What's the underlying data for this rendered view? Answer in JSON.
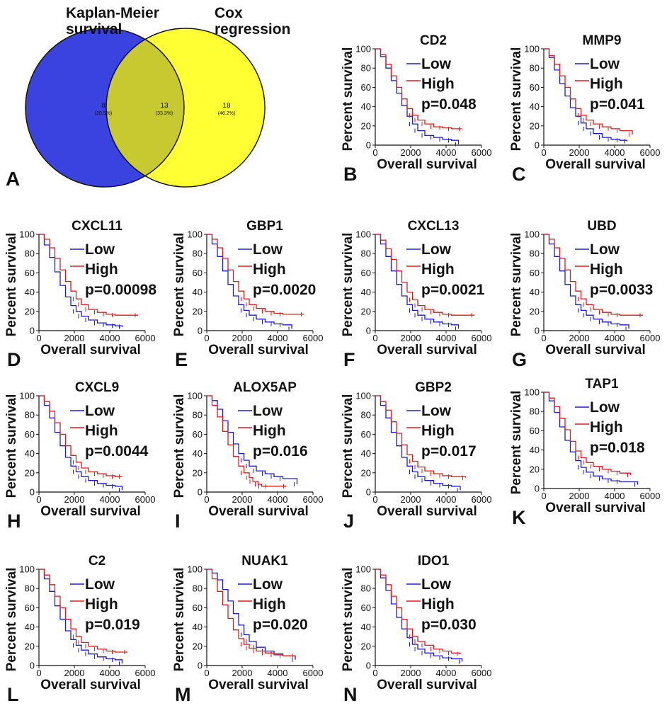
{
  "venn": {
    "panel_letter": "A",
    "left_label": [
      "Kaplan-Meier",
      "survival"
    ],
    "right_label": [
      "Cox",
      "regression"
    ],
    "left_only": {
      "count": "8",
      "pct": "(20.5%)"
    },
    "overlap": {
      "count": "13",
      "pct": "(33.3%)"
    },
    "right_only": {
      "count": "18",
      "pct": "(46.2%)"
    },
    "colors": {
      "left": "#3a43e0",
      "right": "#ffff33",
      "overlap": "#c8c830"
    }
  },
  "axis_text": {
    "ylabel": "Percent survival",
    "xlabel": "Overall survival",
    "legend_low": "Low",
    "legend_high": "High"
  },
  "colors": {
    "low": "#1c1cd6",
    "high": "#e01c1c"
  },
  "x_ticks": [
    0,
    2000,
    4000,
    6000
  ],
  "y_ticks": [
    0,
    20,
    40,
    60,
    80,
    100
  ],
  "chart_data": [
    {
      "type": "line",
      "panel": "B",
      "title": "CD2",
      "pvalue": "p=0.048",
      "xlim": [
        0,
        6000
      ],
      "ylim": [
        0,
        100
      ],
      "series": [
        {
          "name": "Low",
          "x": [
            0,
            300,
            600,
            900,
            1200,
            1500,
            1800,
            2100,
            2400,
            2800,
            3300,
            3800,
            4300,
            4700
          ],
          "y": [
            100,
            92,
            80,
            67,
            54,
            41,
            30,
            22,
            15,
            10,
            8,
            6,
            5,
            1
          ]
        },
        {
          "name": "High",
          "x": [
            0,
            300,
            600,
            900,
            1200,
            1500,
            1800,
            2100,
            2400,
            2800,
            3300,
            3800,
            4300,
            4900
          ],
          "y": [
            100,
            94,
            84,
            72,
            60,
            48,
            38,
            31,
            26,
            22,
            19,
            18,
            17,
            17
          ]
        }
      ]
    },
    {
      "type": "line",
      "panel": "C",
      "title": "MMP9",
      "pvalue": "p=0.041",
      "xlim": [
        0,
        6000
      ],
      "ylim": [
        0,
        100
      ],
      "series": [
        {
          "name": "Low",
          "x": [
            0,
            300,
            600,
            900,
            1200,
            1500,
            1800,
            2100,
            2400,
            2800,
            3300,
            3800,
            4300,
            4700
          ],
          "y": [
            100,
            91,
            78,
            64,
            51,
            39,
            30,
            23,
            17,
            12,
            8,
            6,
            5,
            4
          ]
        },
        {
          "name": "High",
          "x": [
            0,
            300,
            600,
            900,
            1200,
            1500,
            1800,
            2100,
            2400,
            2800,
            3300,
            3800,
            4300,
            5000
          ],
          "y": [
            100,
            93,
            84,
            72,
            60,
            48,
            38,
            31,
            26,
            22,
            19,
            17,
            15,
            11
          ]
        }
      ]
    },
    {
      "type": "line",
      "panel": "D",
      "title": "CXCL11",
      "pvalue": "p=0.00098",
      "xlim": [
        0,
        6000
      ],
      "ylim": [
        0,
        100
      ],
      "series": [
        {
          "name": "Low",
          "x": [
            0,
            300,
            600,
            900,
            1200,
            1500,
            1800,
            2100,
            2400,
            2800,
            3300,
            3800,
            4300,
            4700
          ],
          "y": [
            100,
            89,
            76,
            61,
            47,
            35,
            26,
            20,
            15,
            11,
            8,
            6,
            5,
            4
          ]
        },
        {
          "name": "High",
          "x": [
            0,
            300,
            600,
            900,
            1200,
            1500,
            1800,
            2100,
            2400,
            2800,
            3300,
            3800,
            4300,
            5600
          ],
          "y": [
            100,
            95,
            86,
            75,
            63,
            51,
            41,
            33,
            27,
            22,
            19,
            17,
            16,
            16
          ]
        }
      ]
    },
    {
      "type": "line",
      "panel": "E",
      "title": "GBP1",
      "pvalue": "p=0.0020",
      "xlim": [
        0,
        6000
      ],
      "ylim": [
        0,
        100
      ],
      "series": [
        {
          "name": "Low",
          "x": [
            0,
            300,
            600,
            900,
            1200,
            1500,
            1800,
            2100,
            2400,
            2800,
            3300,
            3800,
            4300,
            4800
          ],
          "y": [
            100,
            90,
            77,
            62,
            48,
            36,
            27,
            21,
            16,
            12,
            9,
            7,
            6,
            2
          ]
        },
        {
          "name": "High",
          "x": [
            0,
            300,
            600,
            900,
            1200,
            1500,
            1800,
            2100,
            2400,
            2800,
            3300,
            3800,
            4300,
            5500
          ],
          "y": [
            100,
            95,
            86,
            75,
            63,
            51,
            41,
            33,
            27,
            23,
            20,
            18,
            17,
            17
          ]
        }
      ]
    },
    {
      "type": "line",
      "panel": "F",
      "title": "CXCL13",
      "pvalue": "p=0.0021",
      "xlim": [
        0,
        6000
      ],
      "ylim": [
        0,
        100
      ],
      "series": [
        {
          "name": "Low",
          "x": [
            0,
            300,
            600,
            900,
            1200,
            1500,
            1800,
            2100,
            2400,
            2800,
            3300,
            3800,
            4300,
            4700
          ],
          "y": [
            100,
            90,
            77,
            62,
            48,
            36,
            27,
            21,
            16,
            12,
            9,
            7,
            6,
            2
          ]
        },
        {
          "name": "High",
          "x": [
            0,
            300,
            600,
            900,
            1200,
            1500,
            1800,
            2100,
            2400,
            2800,
            3300,
            3800,
            4300,
            5600
          ],
          "y": [
            100,
            94,
            85,
            74,
            62,
            50,
            40,
            32,
            26,
            22,
            19,
            17,
            16,
            16
          ]
        }
      ]
    },
    {
      "type": "line",
      "panel": "G",
      "title": "UBD",
      "pvalue": "p=0.0033",
      "xlim": [
        0,
        6000
      ],
      "ylim": [
        0,
        100
      ],
      "series": [
        {
          "name": "Low",
          "x": [
            0,
            300,
            600,
            900,
            1200,
            1500,
            1800,
            2100,
            2400,
            2800,
            3300,
            3800,
            4300,
            4800
          ],
          "y": [
            100,
            90,
            77,
            62,
            48,
            36,
            27,
            21,
            16,
            12,
            9,
            7,
            6,
            2
          ]
        },
        {
          "name": "High",
          "x": [
            0,
            300,
            600,
            900,
            1200,
            1500,
            1800,
            2100,
            2400,
            2800,
            3300,
            3800,
            4300,
            5600
          ],
          "y": [
            100,
            95,
            86,
            75,
            63,
            51,
            41,
            33,
            27,
            22,
            19,
            17,
            16,
            16
          ]
        }
      ]
    },
    {
      "type": "line",
      "panel": "H",
      "title": "CXCL9",
      "pvalue": "p=0.0044",
      "xlim": [
        0,
        6000
      ],
      "ylim": [
        0,
        100
      ],
      "series": [
        {
          "name": "Low",
          "x": [
            0,
            300,
            600,
            900,
            1200,
            1500,
            1800,
            2100,
            2400,
            2800,
            3300,
            3800,
            4300,
            4700
          ],
          "y": [
            100,
            90,
            77,
            62,
            48,
            36,
            27,
            21,
            16,
            12,
            9,
            7,
            6,
            2
          ]
        },
        {
          "name": "High",
          "x": [
            0,
            300,
            600,
            900,
            1200,
            1500,
            1800,
            2100,
            2400,
            2800,
            3300,
            3800,
            4300,
            4700
          ],
          "y": [
            100,
            94,
            84,
            72,
            60,
            48,
            38,
            31,
            25,
            21,
            19,
            17,
            16,
            16
          ]
        }
      ]
    },
    {
      "type": "line",
      "panel": "I",
      "title": "ALOX5AP",
      "pvalue": "p=0.016",
      "xlim": [
        0,
        6000
      ],
      "ylim": [
        0,
        100
      ],
      "series": [
        {
          "name": "Low",
          "x": [
            0,
            300,
            600,
            900,
            1200,
            1500,
            1800,
            2100,
            2400,
            2800,
            3300,
            3800,
            4300,
            5100
          ],
          "y": [
            100,
            95,
            86,
            74,
            62,
            50,
            40,
            33,
            27,
            22,
            19,
            16,
            14,
            8
          ]
        },
        {
          "name": "High",
          "x": [
            0,
            300,
            600,
            900,
            1200,
            1500,
            1800,
            2100,
            2400,
            2600,
            2900,
            3100,
            3500,
            4500
          ],
          "y": [
            100,
            90,
            78,
            63,
            49,
            37,
            27,
            20,
            15,
            11,
            8,
            6,
            6,
            6
          ]
        }
      ]
    },
    {
      "type": "line",
      "panel": "J",
      "title": "GBP2",
      "pvalue": "p=0.017",
      "xlim": [
        0,
        6000
      ],
      "ylim": [
        0,
        100
      ],
      "series": [
        {
          "name": "Low",
          "x": [
            0,
            300,
            600,
            900,
            1200,
            1500,
            1800,
            2100,
            2400,
            2800,
            3300,
            3800,
            4300,
            4800
          ],
          "y": [
            100,
            90,
            77,
            62,
            48,
            36,
            27,
            21,
            16,
            12,
            9,
            7,
            6,
            2
          ]
        },
        {
          "name": "High",
          "x": [
            0,
            300,
            600,
            900,
            1200,
            1500,
            1800,
            2100,
            2400,
            2800,
            3300,
            3800,
            4300,
            5100
          ],
          "y": [
            100,
            94,
            85,
            73,
            61,
            49,
            39,
            32,
            26,
            22,
            19,
            17,
            16,
            15
          ]
        }
      ]
    },
    {
      "type": "line",
      "panel": "K",
      "title": "TAP1",
      "pvalue": "p=0.018",
      "xlim": [
        0,
        6000
      ],
      "ylim": [
        0,
        100
      ],
      "series": [
        {
          "name": "Low",
          "x": [
            0,
            300,
            600,
            900,
            1200,
            1500,
            1800,
            2100,
            2400,
            2800,
            3300,
            3800,
            4300,
            5300
          ],
          "y": [
            100,
            91,
            79,
            64,
            50,
            38,
            29,
            22,
            17,
            13,
            10,
            8,
            7,
            4
          ]
        },
        {
          "name": "High",
          "x": [
            0,
            300,
            600,
            900,
            1200,
            1500,
            1800,
            2100,
            2400,
            2800,
            3300,
            3800,
            4300,
            4900
          ],
          "y": [
            100,
            94,
            85,
            73,
            61,
            49,
            39,
            32,
            27,
            23,
            20,
            18,
            16,
            14
          ]
        }
      ]
    },
    {
      "type": "line",
      "panel": "L",
      "title": "C2",
      "pvalue": "p=0.019",
      "xlim": [
        0,
        6000
      ],
      "ylim": [
        0,
        100
      ],
      "series": [
        {
          "name": "Low",
          "x": [
            0,
            300,
            600,
            900,
            1200,
            1500,
            1800,
            2100,
            2400,
            2800,
            3300,
            3800,
            4300,
            4700
          ],
          "y": [
            100,
            90,
            77,
            62,
            48,
            36,
            27,
            21,
            16,
            12,
            9,
            7,
            6,
            2
          ]
        },
        {
          "name": "High",
          "x": [
            0,
            300,
            600,
            900,
            1200,
            1500,
            1800,
            2100,
            2400,
            2800,
            3300,
            3800,
            4300,
            5000
          ],
          "y": [
            100,
            94,
            84,
            72,
            60,
            48,
            38,
            30,
            24,
            20,
            17,
            15,
            14,
            14
          ]
        }
      ]
    },
    {
      "type": "line",
      "panel": "M",
      "title": "NUAK1",
      "pvalue": "p=0.020",
      "xlim": [
        0,
        6000
      ],
      "ylim": [
        0,
        100
      ],
      "series": [
        {
          "name": "Low",
          "x": [
            0,
            300,
            600,
            900,
            1200,
            1500,
            1800,
            2100,
            2400,
            2800,
            3300,
            3800,
            4300,
            5000
          ],
          "y": [
            100,
            96,
            89,
            79,
            67,
            54,
            42,
            32,
            25,
            19,
            15,
            12,
            10,
            6
          ]
        },
        {
          "name": "High",
          "x": [
            0,
            300,
            600,
            900,
            1200,
            1500,
            1800,
            2100,
            2400,
            2800,
            3300,
            3800,
            4300,
            5000
          ],
          "y": [
            100,
            90,
            77,
            63,
            49,
            37,
            28,
            22,
            18,
            15,
            13,
            11,
            10,
            10
          ]
        }
      ]
    },
    {
      "type": "line",
      "panel": "N",
      "title": "IDO1",
      "pvalue": "p=0.030",
      "xlim": [
        0,
        6000
      ],
      "ylim": [
        0,
        100
      ],
      "series": [
        {
          "name": "Low",
          "x": [
            0,
            300,
            600,
            900,
            1200,
            1500,
            1800,
            2100,
            2400,
            2800,
            3300,
            3800,
            4300,
            4900
          ],
          "y": [
            100,
            91,
            78,
            64,
            50,
            38,
            29,
            22,
            17,
            13,
            10,
            8,
            7,
            4
          ]
        },
        {
          "name": "High",
          "x": [
            0,
            300,
            600,
            900,
            1200,
            1500,
            1800,
            2100,
            2400,
            2800,
            3300,
            3800,
            4300,
            4800
          ],
          "y": [
            100,
            94,
            84,
            72,
            60,
            48,
            38,
            30,
            25,
            21,
            17,
            15,
            13,
            12
          ]
        }
      ]
    }
  ]
}
